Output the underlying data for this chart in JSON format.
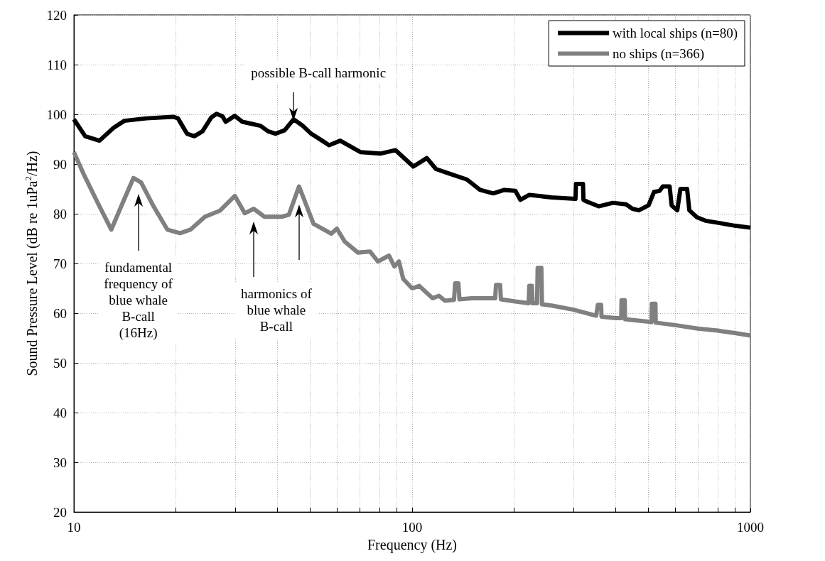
{
  "chart_data": {
    "type": "line",
    "xlabel": "Frequency (Hz)",
    "ylabel": "Sound Pressure Level (dB re 1uPa$^{2}$/Hz)",
    "log": "x",
    "xlim": [
      10,
      1000
    ],
    "xticks": [
      10,
      {
        "value": 20,
        "label": null
      },
      {
        "value": 30,
        "label": null
      },
      {
        "value": 40,
        "label": null
      },
      {
        "value": 50,
        "label": null
      },
      {
        "value": 60,
        "label": null
      },
      {
        "value": 70,
        "label": null
      },
      {
        "value": 80,
        "label": null
      },
      {
        "value": 90,
        "label": null
      },
      100,
      {
        "value": 200,
        "label": null
      },
      {
        "value": 300,
        "label": null
      },
      {
        "value": 400,
        "label": null
      },
      {
        "value": 500,
        "label": null
      },
      {
        "value": 600,
        "label": null
      },
      {
        "value": 700,
        "label": null
      },
      {
        "value": 800,
        "label": null
      },
      {
        "value": 900,
        "label": null
      },
      1000
    ],
    "ylim": [
      20,
      120
    ],
    "yticks": [
      20,
      30,
      40,
      50,
      60,
      70,
      80,
      90,
      100,
      110,
      120
    ],
    "grid": true,
    "legend": "top right",
    "series": [
      {
        "name": "with local ships (n=80)",
        "color": "#000000",
        "x": [
          10,
          10.8,
          11.9,
          13.1,
          14.1,
          16.4,
          19.7,
          20.3,
          21.6,
          22.7,
          24,
          25.5,
          26.4,
          27.5,
          28.1,
          29.9,
          31.5,
          34,
          35.6,
          37.5,
          39.5,
          42,
          44.6,
          47.3,
          50.3,
          54.2,
          56.8,
          61.3,
          70.3,
          80.5,
          89.3,
          100.8,
          110.5,
          117.6,
          128.6,
          145.1,
          158.8,
          173.7,
          187.3,
          202,
          209,
          222,
          258,
          304,
          305,
          320,
          321,
          330,
          356,
          392,
          429,
          448,
          468,
          500,
          519,
          539,
          551,
          577,
          585,
          608,
          621,
          650,
          660,
          695,
          737,
          800,
          900,
          1000
        ],
        "values": [
          99,
          95.6,
          94.7,
          97.3,
          98.7,
          99.2,
          99.5,
          99.2,
          96.1,
          95.6,
          96.6,
          99.4,
          100.1,
          99.6,
          98.5,
          99.7,
          98.5,
          98,
          97.7,
          96.6,
          96.1,
          96.8,
          99,
          97.8,
          96.1,
          94.7,
          93.8,
          94.7,
          92.4,
          92.1,
          92.8,
          89.5,
          91.2,
          89,
          88.1,
          86.9,
          84.8,
          84.1,
          84.8,
          84.6,
          82.8,
          83.8,
          83.3,
          83,
          86,
          86,
          82.8,
          82.4,
          81.5,
          82.2,
          81.9,
          81,
          80.7,
          81.7,
          84.4,
          84.6,
          85.5,
          85.5,
          81.7,
          80.7,
          85,
          85,
          80.7,
          79.3,
          78.6,
          78.2,
          77.6,
          77.2
        ]
      },
      {
        "name": "no ships (n=366)",
        "color": "#808080",
        "x": [
          10,
          10.7,
          11.8,
          12.9,
          13.9,
          15,
          15.8,
          17.2,
          18.9,
          20.6,
          22.1,
          24.4,
          27,
          29.9,
          32,
          34,
          36.6,
          41.3,
          43.2,
          46.3,
          48.8,
          51.1,
          57.7,
          59.9,
          63.2,
          69.1,
          75.1,
          79.2,
          85.4,
          88.6,
          91.4,
          94.1,
          100,
          105,
          110,
          115,
          120,
          125,
          133,
          134,
          137,
          138,
          150,
          170,
          176,
          177,
          182,
          183,
          200,
          221,
          222,
          226,
          227,
          234,
          235,
          241,
          242,
          260,
          300,
          350,
          354,
          362,
          363,
          400,
          415,
          416,
          425,
          426,
          500,
          510,
          511,
          524,
          525,
          600,
          700,
          800,
          900,
          1000
        ],
        "values": [
          92.4,
          87.9,
          82,
          76.8,
          82,
          87.2,
          86.3,
          81.5,
          76.8,
          76.1,
          76.8,
          79.4,
          80.6,
          83.6,
          80.1,
          81,
          79.4,
          79.4,
          79.8,
          85.5,
          81.5,
          78,
          76,
          77,
          74.4,
          72.2,
          72.4,
          70.4,
          71.6,
          69.4,
          70.4,
          66.9,
          65,
          65.5,
          64.2,
          63,
          63.5,
          62.5,
          62.7,
          66,
          66,
          62.8,
          63,
          63,
          63,
          65.7,
          65.7,
          62.8,
          62.4,
          62,
          65.5,
          65.5,
          62,
          62,
          69.1,
          69.1,
          61.8,
          61.5,
          60.7,
          59.5,
          61.7,
          61.7,
          59.3,
          59,
          59,
          62.6,
          62.6,
          58.8,
          58.3,
          58.2,
          61.9,
          61.9,
          58.1,
          57.6,
          56.9,
          56.5,
          56,
          55.5
        ]
      }
    ],
    "annotations": [
      "possible B-call harmonic",
      "fundamental\nfrequency of\nblue whale\nB-call\n(16Hz)",
      "harmonics of\nblue whale\nB-call"
    ]
  }
}
